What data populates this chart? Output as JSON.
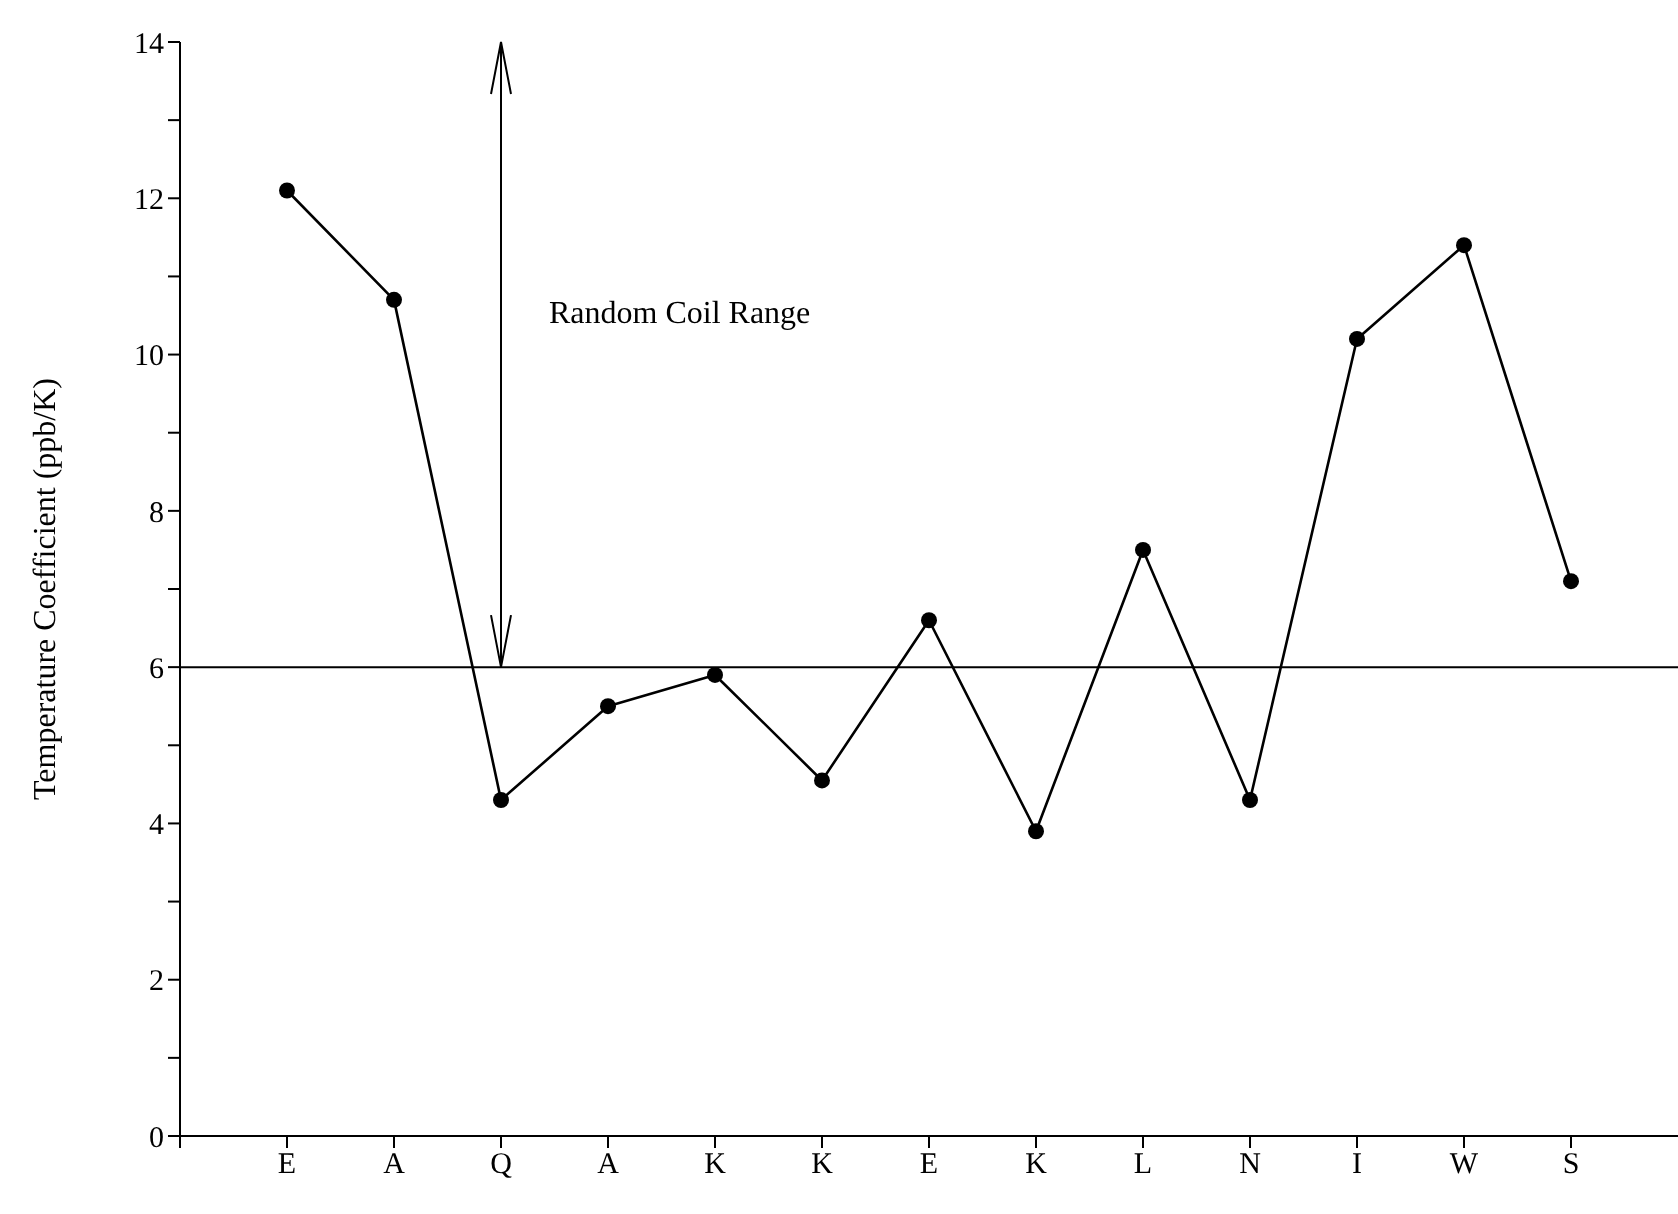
{
  "chart_data": {
    "type": "line",
    "ylabel": "Temperature Coefficient (ppb/K)",
    "categories": [
      "E",
      "A",
      "Q",
      "A",
      "K",
      "K",
      "E",
      "K",
      "L",
      "N",
      "I",
      "W",
      "S"
    ],
    "series": [
      {
        "color": "#000000",
        "values": [
          12.1,
          10.7,
          4.3,
          5.5,
          5.9,
          4.55,
          6.6,
          3.9,
          7.5,
          4.3,
          10.2,
          11.4,
          7.1
        ]
      }
    ],
    "ylim": [
      0,
      14
    ],
    "yticks": [
      0,
      {
        "value": 1,
        "label": null
      },
      2,
      {
        "value": 3,
        "label": null
      },
      4,
      {
        "value": 5,
        "label": null
      },
      6,
      {
        "value": 7,
        "label": null
      },
      8,
      {
        "value": 9,
        "label": null
      },
      10,
      {
        "value": 11,
        "label": null
      },
      12,
      {
        "value": 13,
        "label": null
      },
      14
    ],
    "ref_lines": [
      {
        "axis": "y",
        "value": 6,
        "color": "#000000"
      }
    ],
    "annotations": [
      "Random Coil Range"
    ],
    "marker": "circle",
    "line_style": "solid",
    "grid": false,
    "legend": false
  }
}
